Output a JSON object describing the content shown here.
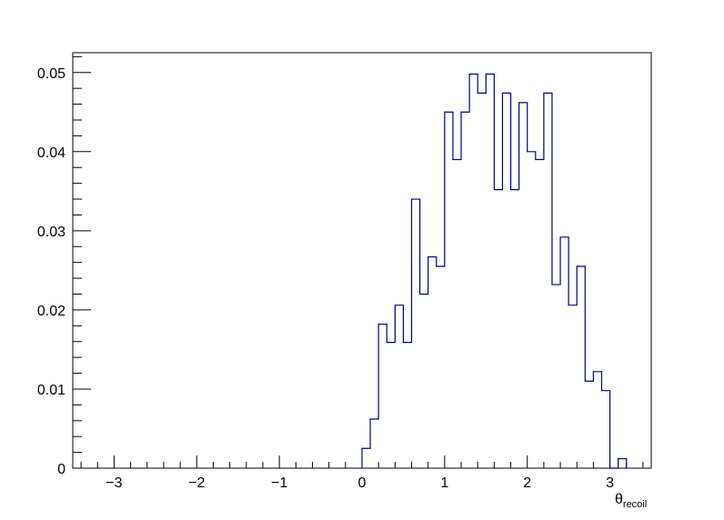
{
  "chart_data": {
    "type": "histogram",
    "title": "",
    "xlabel": "θ",
    "xlabel_subscript": "recoil",
    "ylabel": "",
    "xlim": [
      -3.5,
      3.5
    ],
    "ylim": [
      0,
      0.0525
    ],
    "x_ticks": [
      -3,
      -2,
      -1,
      0,
      1,
      2,
      3
    ],
    "x_tick_labels": [
      "−3",
      "−2",
      "−1",
      "0",
      "1",
      "2",
      "3"
    ],
    "y_ticks": [
      0,
      0.01,
      0.02,
      0.03,
      0.04,
      0.05
    ],
    "y_tick_labels": [
      "0",
      "0.01",
      "0.02",
      "0.03",
      "0.04",
      "0.05"
    ],
    "grid": false,
    "line_color": "#000080",
    "bin_start": 0.0,
    "bin_width": 0.1,
    "values": [
      0.0025,
      0.0062,
      0.0182,
      0.0159,
      0.0206,
      0.0159,
      0.034,
      0.022,
      0.0267,
      0.0255,
      0.045,
      0.039,
      0.045,
      0.0498,
      0.0474,
      0.0498,
      0.0352,
      0.0474,
      0.0352,
      0.0462,
      0.04,
      0.039,
      0.0474,
      0.0232,
      0.0292,
      0.0206,
      0.0255,
      0.011,
      0.0122,
      0.0098,
      0.0,
      0.0012
    ]
  }
}
